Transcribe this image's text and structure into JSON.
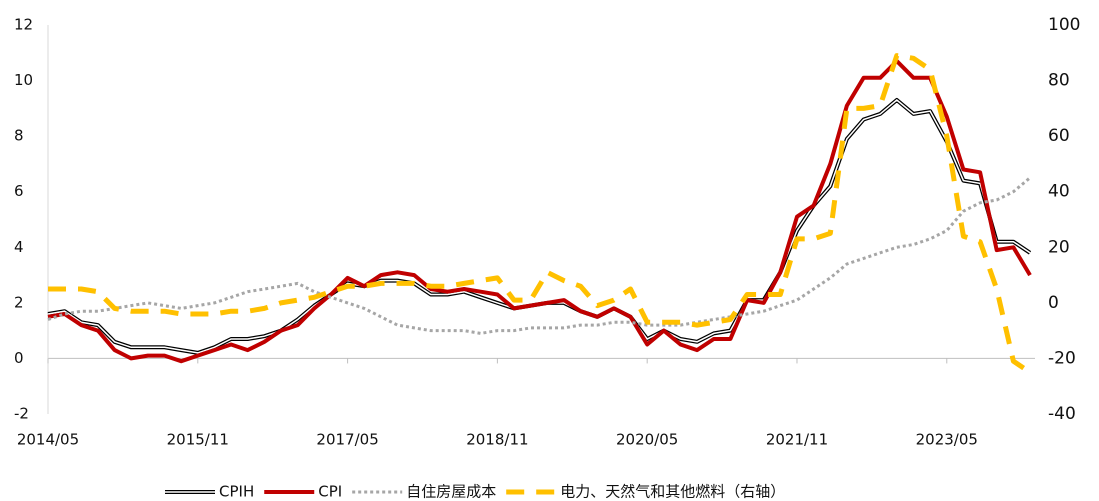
{
  "chart_data": {
    "type": "line",
    "categories": [
      "2014/05",
      null,
      null,
      null,
      null,
      null,
      null,
      null,
      null,
      "2015/11",
      null,
      null,
      null,
      null,
      null,
      null,
      null,
      null,
      "2017/05",
      null,
      null,
      null,
      null,
      null,
      null,
      null,
      null,
      "2018/11",
      null,
      null,
      null,
      null,
      null,
      null,
      null,
      null,
      "2020/05",
      null,
      null,
      null,
      null,
      null,
      null,
      null,
      null,
      "2021/11",
      null,
      null,
      null,
      null,
      null,
      null,
      null,
      null,
      "2023/05",
      null,
      null,
      null,
      null,
      null
    ],
    "ylim": [
      -2,
      12
    ],
    "yticks": [
      -2,
      0,
      2,
      4,
      6,
      8,
      10,
      12
    ],
    "y2lim": [
      -40,
      100
    ],
    "y2ticks": [
      -40,
      -20,
      0,
      20,
      40,
      60,
      80,
      100
    ],
    "series": [
      {
        "name": "CPIH",
        "color": "#000000",
        "line_style": "double",
        "values": [
          1.6,
          1.7,
          1.3,
          1.2,
          0.6,
          0.4,
          0.4,
          0.4,
          0.3,
          0.2,
          0.4,
          0.7,
          0.7,
          0.8,
          1.0,
          1.4,
          1.9,
          2.3,
          2.7,
          2.6,
          2.8,
          2.8,
          2.7,
          2.3,
          2.3,
          2.4,
          2.2,
          2.0,
          1.8,
          1.9,
          2.0,
          2.0,
          1.7,
          1.5,
          1.8,
          1.5,
          0.7,
          1.0,
          0.7,
          0.6,
          0.9,
          1.0,
          2.1,
          2.1,
          3.1,
          4.6,
          5.5,
          6.2,
          7.9,
          8.6,
          8.8,
          9.3,
          8.8,
          8.9,
          7.8,
          6.4,
          6.3,
          4.2,
          4.2,
          3.8
        ]
      },
      {
        "name": "CPI",
        "color": "#c00000",
        "line_style": "solid",
        "values": [
          1.5,
          1.6,
          1.2,
          1.0,
          0.3,
          0.0,
          0.1,
          0.1,
          -0.1,
          0.1,
          0.3,
          0.5,
          0.3,
          0.6,
          1.0,
          1.2,
          1.8,
          2.3,
          2.9,
          2.6,
          3.0,
          3.1,
          3.0,
          2.5,
          2.4,
          2.5,
          2.4,
          2.3,
          1.8,
          1.9,
          2.0,
          2.1,
          1.7,
          1.5,
          1.8,
          1.5,
          0.5,
          1.0,
          0.5,
          0.3,
          0.7,
          0.7,
          2.1,
          2.0,
          3.1,
          5.1,
          5.5,
          7.0,
          9.1,
          10.1,
          10.1,
          10.7,
          10.1,
          10.1,
          8.7,
          6.8,
          6.7,
          3.9,
          4.0,
          3.0
        ]
      },
      {
        "name": "自住房屋成本",
        "color": "#a6a6a6",
        "line_style": "dotted",
        "values": [
          1.4,
          1.6,
          1.7,
          1.7,
          1.8,
          1.9,
          2.0,
          1.9,
          1.8,
          1.9,
          2.0,
          2.2,
          2.4,
          2.5,
          2.6,
          2.7,
          2.4,
          2.2,
          2.0,
          1.8,
          1.5,
          1.2,
          1.1,
          1.0,
          1.0,
          1.0,
          0.9,
          1.0,
          1.0,
          1.1,
          1.1,
          1.1,
          1.2,
          1.2,
          1.3,
          1.3,
          1.2,
          1.2,
          1.2,
          1.3,
          1.4,
          1.5,
          1.6,
          1.7,
          1.9,
          2.1,
          2.5,
          2.9,
          3.4,
          3.6,
          3.8,
          4.0,
          4.1,
          4.3,
          4.6,
          5.3,
          5.6,
          5.7,
          6.0,
          6.5
        ]
      },
      {
        "name": "电力、天然气和其他燃料（右轴）",
        "color": "#ffc000",
        "line_style": "dashed",
        "axis": "y2",
        "values": [
          5,
          5,
          5,
          4,
          -2,
          -3,
          -3,
          -3,
          -4,
          -4,
          -4,
          -3,
          -3,
          -2,
          0,
          1,
          2,
          4,
          6,
          6,
          7,
          7,
          7,
          6,
          6,
          7,
          8,
          9,
          1,
          1,
          11,
          8,
          6,
          -1,
          1,
          5,
          -7,
          -7,
          -7,
          -8,
          -7,
          -6,
          3,
          3,
          3,
          23,
          23,
          25,
          70,
          70,
          71,
          89,
          88,
          84,
          60,
          24,
          22,
          5,
          -21,
          -25
        ]
      }
    ]
  }
}
